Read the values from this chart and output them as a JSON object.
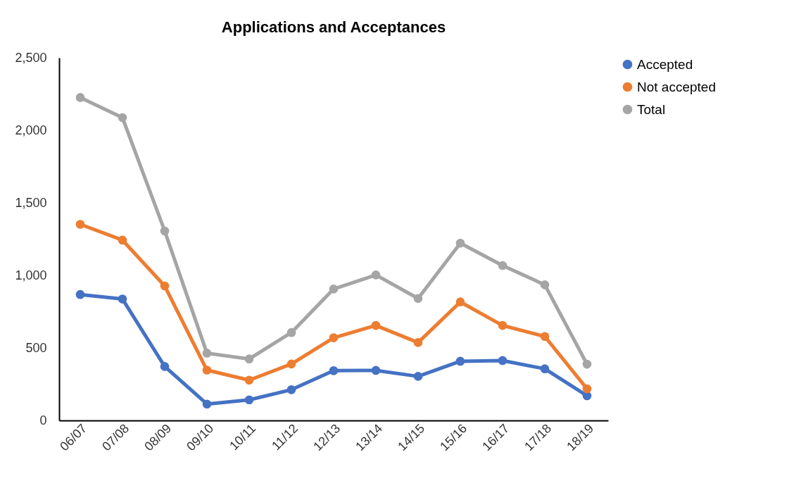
{
  "chart_data": {
    "type": "line",
    "title": "Applications and Acceptances",
    "categories": [
      "06/07",
      "07/08",
      "08/09",
      "09/10",
      "10/11",
      "11/12",
      "12/13",
      "13/14",
      "14/15",
      "15/16",
      "16/17",
      "17/18",
      "18/19"
    ],
    "series": [
      {
        "name": "Accepted",
        "color": "#4472c4",
        "values": [
          868,
          837,
          372,
          113,
          142,
          212,
          343,
          345,
          304,
          408,
          413,
          356,
          170
        ]
      },
      {
        "name": "Not accepted",
        "color": "#ed7d31",
        "values": [
          1352,
          1243,
          927,
          347,
          278,
          389,
          570,
          655,
          537,
          817,
          655,
          579,
          218
        ]
      },
      {
        "name": "Total",
        "color": "#a5a5a5",
        "values": [
          2226,
          2087,
          1306,
          464,
          424,
          606,
          906,
          1003,
          841,
          1222,
          1068,
          935,
          388
        ]
      }
    ],
    "ylim": [
      0,
      2500
    ],
    "yticks": [
      0,
      {
        "value": 500,
        "label": "500"
      },
      {
        "value": 1000,
        "label": "1,000"
      },
      {
        "value": 1500,
        "label": "1,500"
      },
      {
        "value": 2000,
        "label": "2,000"
      },
      {
        "value": 2500,
        "label": "2,500"
      }
    ],
    "legend": "right",
    "marker": "circle",
    "grid": false
  }
}
